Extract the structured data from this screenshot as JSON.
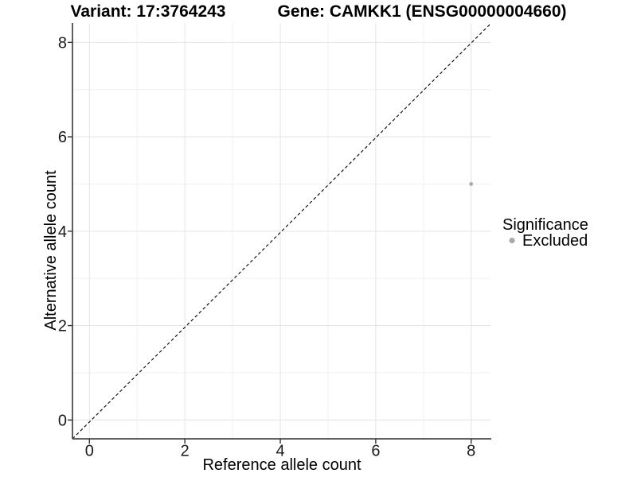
{
  "figure": {
    "background": "#ffffff"
  },
  "header": {
    "title_left": "Variant: 17:3764243",
    "title_right": "Gene: CAMKK1 (ENSG00000004660)"
  },
  "chart_data": {
    "type": "scatter",
    "title_left": "Variant: 17:3764243",
    "title_right": "Gene: CAMKK1 (ENSG00000004660)",
    "xlabel": "Reference allele count",
    "ylabel": "Alternative allele count",
    "xlim": [
      -0.4,
      8.4
    ],
    "ylim": [
      -0.4,
      8.4
    ],
    "x_major_ticks": [
      0,
      2,
      4,
      6,
      8
    ],
    "y_major_ticks": [
      0,
      2,
      4,
      6,
      8
    ],
    "x_minor_ticks": [
      1,
      3,
      5,
      7
    ],
    "y_minor_ticks": [
      1,
      3,
      5,
      7
    ],
    "grid": "major+minor",
    "identity_line": {
      "slope": 1,
      "intercept": 0,
      "style": "dashed",
      "color": "#000000"
    },
    "series": [
      {
        "name": "Excluded",
        "color": "#aaaaaa",
        "points": [
          [
            8,
            5
          ]
        ]
      }
    ],
    "legend": {
      "title": "Significance",
      "position": "right",
      "entries": [
        {
          "label": "Excluded",
          "color": "#aaaaaa"
        }
      ]
    }
  },
  "colors": {
    "major_grid": "#e4e4e4",
    "minor_grid": "#f1f1f1",
    "axis_line": "#4d4d4d",
    "tick": "#333333",
    "tick_label": "#1a1a1a",
    "point": "#aaaaaa"
  }
}
